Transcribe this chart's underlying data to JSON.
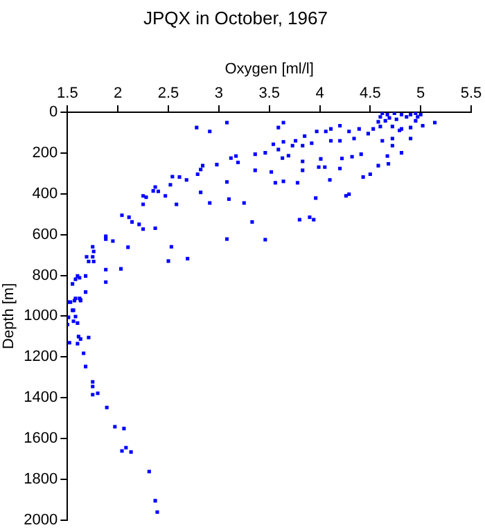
{
  "chart_data": {
    "type": "scatter",
    "title": "JPQX in October, 1967",
    "xlabel": "Oxygen [ml/l]",
    "ylabel": "Depth [m]",
    "xlim": [
      1.5,
      5.5
    ],
    "xticks": [
      1.5,
      2,
      2.5,
      3,
      3.5,
      4,
      4.5,
      5,
      5.5
    ],
    "ylim": [
      2000,
      0
    ],
    "yticks": [
      0,
      200,
      400,
      600,
      800,
      1000,
      1200,
      1400,
      1600,
      1800,
      2000
    ],
    "grid": false,
    "legend": false,
    "marker": "square",
    "series": [
      {
        "color": "#0000ff",
        "x": [
          4.62,
          4.67,
          4.74,
          4.81,
          4.9,
          4.95,
          5.0,
          4.6,
          4.69,
          4.86,
          4.97,
          4.65,
          4.76,
          4.58,
          4.95,
          5.14,
          5.02,
          4.9,
          4.81,
          4.72,
          4.6,
          4.53,
          4.39,
          4.29,
          4.2,
          4.11,
          4.06,
          3.97,
          3.85,
          3.76,
          3.64,
          3.54,
          3.64,
          3.59,
          3.08,
          2.91,
          2.78,
          3.17,
          3.12,
          3.19,
          2.98,
          2.84,
          2.82,
          2.79,
          2.68,
          2.61,
          2.54,
          2.52,
          2.37,
          2.4,
          2.25,
          2.28,
          2.35,
          2.47,
          2.58,
          2.25,
          2.82,
          2.91,
          3.08,
          3.1,
          3.25,
          3.36,
          3.36,
          3.46,
          3.52,
          3.56,
          3.63,
          3.64,
          3.69,
          3.78,
          3.83,
          3.83,
          3.96,
          4.01,
          3.99,
          4.05,
          4.1,
          4.2,
          4.22,
          4.26,
          4.29,
          4.32,
          4.41,
          4.43,
          4.5,
          4.58,
          4.67,
          4.68,
          4.81,
          4.9,
          4.72,
          4.62,
          4.48,
          4.34,
          4.2,
          4.11,
          3.92,
          3.83,
          3.73,
          3.59,
          4.72,
          4.79,
          3.33,
          3.46,
          3.08,
          3.8,
          3.9,
          3.94,
          2.04,
          2.11,
          2.14,
          2.21,
          2.25,
          2.37,
          1.88,
          1.88,
          1.95,
          2.1,
          2.53,
          2.69,
          2.5,
          2.03,
          1.75,
          1.76,
          1.69,
          1.75,
          1.71,
          1.76,
          1.88,
          1.88,
          1.6,
          1.62,
          1.68,
          1.58,
          1.55,
          1.68,
          1.62,
          1.58,
          1.53,
          1.56,
          1.63,
          1.5,
          1.57,
          1.63,
          1.55,
          1.51,
          1.58,
          1.56,
          1.6,
          1.5,
          1.61,
          1.63,
          1.71,
          1.6,
          1.52,
          1.66,
          1.68,
          1.75,
          1.75,
          1.75,
          1.8,
          1.89,
          1.97,
          2.06,
          2.08,
          2.04,
          2.13,
          2.31,
          2.37,
          2.39
        ],
        "values": [
          5,
          12,
          5,
          12,
          12,
          5,
          12,
          23,
          28,
          23,
          23,
          42,
          35,
          47,
          42,
          51,
          66,
          75,
          82,
          70,
          70,
          82,
          82,
          94,
          66,
          82,
          94,
          94,
          117,
          140,
          145,
          157,
          51,
          75,
          51,
          94,
          75,
          215,
          225,
          246,
          257,
          262,
          281,
          304,
          332,
          318,
          316,
          356,
          367,
          388,
          410,
          417,
          386,
          410,
          452,
          452,
          393,
          445,
          342,
          426,
          445,
          206,
          285,
          199,
          293,
          346,
          225,
          339,
          213,
          346,
          241,
          285,
          421,
          229,
          269,
          269,
          332,
          276,
          227,
          410,
          402,
          218,
          206,
          318,
          304,
          262,
          215,
          253,
          199,
          129,
          164,
          140,
          105,
          129,
          140,
          140,
          152,
          164,
          164,
          183,
          129,
          89,
          538,
          625,
          622,
          527,
          515,
          527,
          505,
          515,
          538,
          550,
          573,
          569,
          608,
          622,
          632,
          662,
          660,
          718,
          730,
          768,
          660,
          683,
          709,
          709,
          732,
          732,
          772,
          833,
          803,
          812,
          803,
          819,
          842,
          882,
          913,
          913,
          931,
          971,
          924,
          931,
          924,
          920,
          971,
          1006,
          1002,
          1025,
          1034,
          1041,
          1100,
          1112,
          1105,
          1135,
          1130,
          1182,
          1247,
          1322,
          1345,
          1385,
          1378,
          1448,
          1542,
          1551,
          1645,
          1661,
          1666,
          1762,
          1905,
          1961
        ]
      }
    ]
  }
}
